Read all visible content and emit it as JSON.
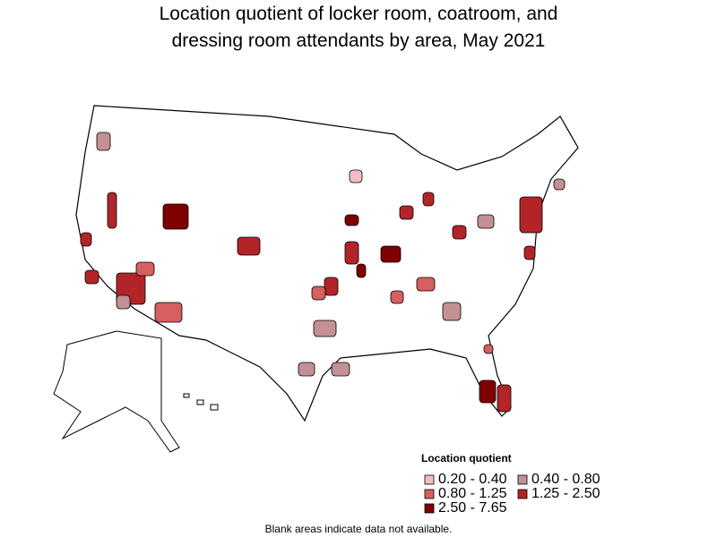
{
  "title": "Location quotient of locker room, coatroom, and dressing room attendants by area, May 2021",
  "legend": {
    "title": "Location quotient",
    "entries": [
      {
        "label": "0.20 - 0.40",
        "color": "#f4bcc4"
      },
      {
        "label": "0.40 - 0.80",
        "color": "#c39093"
      },
      {
        "label": "0.80 - 1.25",
        "color": "#d65f5f"
      },
      {
        "label": "1.25 - 2.50",
        "color": "#b22428"
      },
      {
        "label": "2.50 - 7.65",
        "color": "#7f0000"
      }
    ]
  },
  "footnote": "Blank areas indicate data not available."
}
